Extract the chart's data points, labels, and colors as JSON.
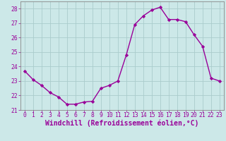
{
  "x": [
    0,
    1,
    2,
    3,
    4,
    5,
    6,
    7,
    8,
    9,
    10,
    11,
    12,
    13,
    14,
    15,
    16,
    17,
    18,
    19,
    20,
    21,
    22,
    23
  ],
  "y": [
    23.7,
    23.1,
    22.7,
    22.2,
    21.9,
    21.4,
    21.4,
    21.55,
    21.6,
    22.5,
    22.7,
    23.0,
    24.8,
    26.9,
    27.5,
    27.9,
    28.1,
    27.25,
    27.25,
    27.1,
    26.2,
    25.4,
    23.2,
    23.0
  ],
  "line_color": "#990099",
  "marker": "D",
  "marker_size": 2.2,
  "bg_color": "#cce8e8",
  "grid_color": "#aacccc",
  "xlabel": "Windchill (Refroidissement éolien,°C)",
  "xlabel_color": "#990099",
  "ylim": [
    21,
    28.5
  ],
  "xlim": [
    -0.5,
    23.5
  ],
  "yticks": [
    21,
    22,
    23,
    24,
    25,
    26,
    27,
    28
  ],
  "xticks": [
    0,
    1,
    2,
    3,
    4,
    5,
    6,
    7,
    8,
    9,
    10,
    11,
    12,
    13,
    14,
    15,
    16,
    17,
    18,
    19,
    20,
    21,
    22,
    23
  ],
  "tick_fontsize": 5.8,
  "xlabel_fontsize": 7.0,
  "line_width": 1.0,
  "spine_color": "#888888"
}
